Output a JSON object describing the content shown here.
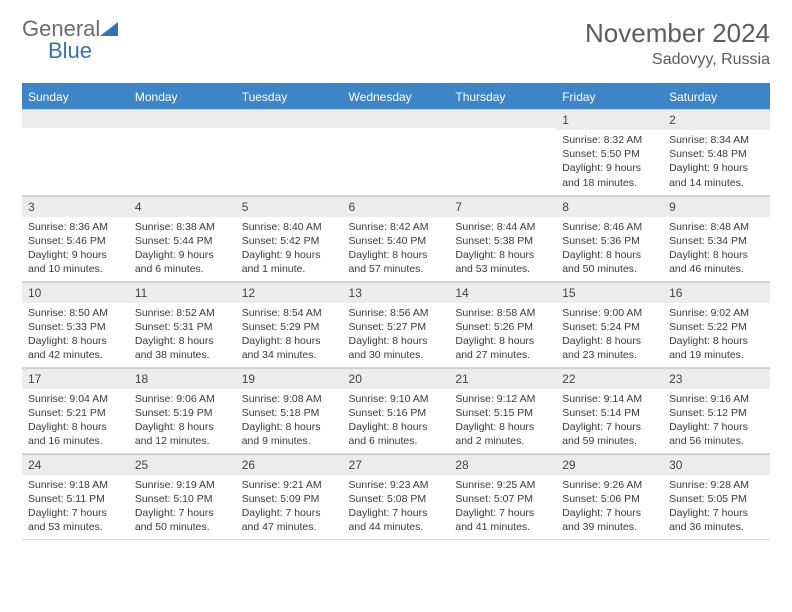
{
  "brand": {
    "part1": "General",
    "part2": "Blue"
  },
  "header": {
    "title": "November 2024",
    "location": "Sadovyy, Russia"
  },
  "colors": {
    "header_bg": "#3d85c6",
    "header_text": "#ffffff",
    "daynum_bg": "#ececec",
    "border": "#d8d8d8",
    "brand_gray": "#6b6b6b",
    "brand_blue": "#2f74b5"
  },
  "daynames": [
    "Sunday",
    "Monday",
    "Tuesday",
    "Wednesday",
    "Thursday",
    "Friday",
    "Saturday"
  ],
  "weeks": [
    [
      null,
      null,
      null,
      null,
      null,
      {
        "n": "1",
        "sunrise": "8:32 AM",
        "sunset": "5:50 PM",
        "daylight": "9 hours and 18 minutes."
      },
      {
        "n": "2",
        "sunrise": "8:34 AM",
        "sunset": "5:48 PM",
        "daylight": "9 hours and 14 minutes."
      }
    ],
    [
      {
        "n": "3",
        "sunrise": "8:36 AM",
        "sunset": "5:46 PM",
        "daylight": "9 hours and 10 minutes."
      },
      {
        "n": "4",
        "sunrise": "8:38 AM",
        "sunset": "5:44 PM",
        "daylight": "9 hours and 6 minutes."
      },
      {
        "n": "5",
        "sunrise": "8:40 AM",
        "sunset": "5:42 PM",
        "daylight": "9 hours and 1 minute."
      },
      {
        "n": "6",
        "sunrise": "8:42 AM",
        "sunset": "5:40 PM",
        "daylight": "8 hours and 57 minutes."
      },
      {
        "n": "7",
        "sunrise": "8:44 AM",
        "sunset": "5:38 PM",
        "daylight": "8 hours and 53 minutes."
      },
      {
        "n": "8",
        "sunrise": "8:46 AM",
        "sunset": "5:36 PM",
        "daylight": "8 hours and 50 minutes."
      },
      {
        "n": "9",
        "sunrise": "8:48 AM",
        "sunset": "5:34 PM",
        "daylight": "8 hours and 46 minutes."
      }
    ],
    [
      {
        "n": "10",
        "sunrise": "8:50 AM",
        "sunset": "5:33 PM",
        "daylight": "8 hours and 42 minutes."
      },
      {
        "n": "11",
        "sunrise": "8:52 AM",
        "sunset": "5:31 PM",
        "daylight": "8 hours and 38 minutes."
      },
      {
        "n": "12",
        "sunrise": "8:54 AM",
        "sunset": "5:29 PM",
        "daylight": "8 hours and 34 minutes."
      },
      {
        "n": "13",
        "sunrise": "8:56 AM",
        "sunset": "5:27 PM",
        "daylight": "8 hours and 30 minutes."
      },
      {
        "n": "14",
        "sunrise": "8:58 AM",
        "sunset": "5:26 PM",
        "daylight": "8 hours and 27 minutes."
      },
      {
        "n": "15",
        "sunrise": "9:00 AM",
        "sunset": "5:24 PM",
        "daylight": "8 hours and 23 minutes."
      },
      {
        "n": "16",
        "sunrise": "9:02 AM",
        "sunset": "5:22 PM",
        "daylight": "8 hours and 19 minutes."
      }
    ],
    [
      {
        "n": "17",
        "sunrise": "9:04 AM",
        "sunset": "5:21 PM",
        "daylight": "8 hours and 16 minutes."
      },
      {
        "n": "18",
        "sunrise": "9:06 AM",
        "sunset": "5:19 PM",
        "daylight": "8 hours and 12 minutes."
      },
      {
        "n": "19",
        "sunrise": "9:08 AM",
        "sunset": "5:18 PM",
        "daylight": "8 hours and 9 minutes."
      },
      {
        "n": "20",
        "sunrise": "9:10 AM",
        "sunset": "5:16 PM",
        "daylight": "8 hours and 6 minutes."
      },
      {
        "n": "21",
        "sunrise": "9:12 AM",
        "sunset": "5:15 PM",
        "daylight": "8 hours and 2 minutes."
      },
      {
        "n": "22",
        "sunrise": "9:14 AM",
        "sunset": "5:14 PM",
        "daylight": "7 hours and 59 minutes."
      },
      {
        "n": "23",
        "sunrise": "9:16 AM",
        "sunset": "5:12 PM",
        "daylight": "7 hours and 56 minutes."
      }
    ],
    [
      {
        "n": "24",
        "sunrise": "9:18 AM",
        "sunset": "5:11 PM",
        "daylight": "7 hours and 53 minutes."
      },
      {
        "n": "25",
        "sunrise": "9:19 AM",
        "sunset": "5:10 PM",
        "daylight": "7 hours and 50 minutes."
      },
      {
        "n": "26",
        "sunrise": "9:21 AM",
        "sunset": "5:09 PM",
        "daylight": "7 hours and 47 minutes."
      },
      {
        "n": "27",
        "sunrise": "9:23 AM",
        "sunset": "5:08 PM",
        "daylight": "7 hours and 44 minutes."
      },
      {
        "n": "28",
        "sunrise": "9:25 AM",
        "sunset": "5:07 PM",
        "daylight": "7 hours and 41 minutes."
      },
      {
        "n": "29",
        "sunrise": "9:26 AM",
        "sunset": "5:06 PM",
        "daylight": "7 hours and 39 minutes."
      },
      {
        "n": "30",
        "sunrise": "9:28 AM",
        "sunset": "5:05 PM",
        "daylight": "7 hours and 36 minutes."
      }
    ]
  ],
  "labels": {
    "sunrise": "Sunrise: ",
    "sunset": "Sunset: ",
    "daylight": "Daylight: "
  }
}
